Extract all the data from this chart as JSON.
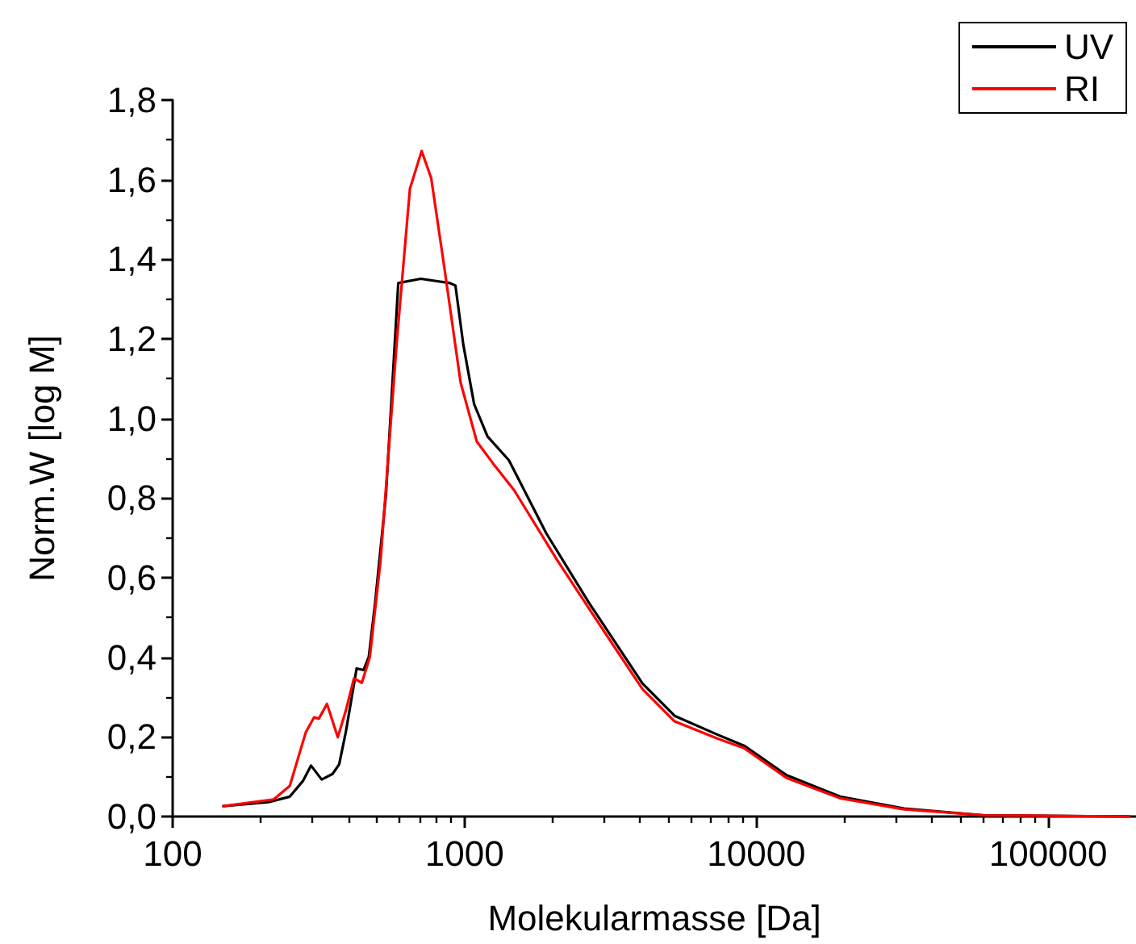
{
  "chart_data": {
    "type": "line",
    "xlabel": "Molekularmasse [Da]",
    "ylabel": "Norm.W [log M]",
    "log": "x",
    "xlim": [
      100,
      200000
    ],
    "xticks": [
      100,
      1000,
      10000,
      100000
    ],
    "ylim": [
      0,
      1.8
    ],
    "yticks": [
      {
        "value": 0,
        "label": "0,0"
      },
      {
        "value": 0.2,
        "label": "0,2"
      },
      {
        "value": 0.4,
        "label": "0,4"
      },
      {
        "value": 0.6,
        "label": "0,6"
      },
      {
        "value": 0.8,
        "label": "0,8"
      },
      {
        "value": 1.0,
        "label": "1,0"
      },
      {
        "value": 1.2,
        "label": "1,2"
      },
      {
        "value": 1.4,
        "label": "1,4"
      },
      {
        "value": 1.6,
        "label": "1,6"
      },
      {
        "value": 1.8,
        "label": "1,8"
      }
    ],
    "grid": false,
    "legend": "top right",
    "marker": "none",
    "line_style": "solid",
    "series": [
      {
        "name": "UV",
        "color": "#000000",
        "x": [
          149,
          213,
          252,
          280,
          298,
          324,
          353,
          372,
          392,
          427,
          451,
          470,
          494,
          538,
          593,
          708,
          893,
          931,
          991,
          1079,
          1199,
          1420,
          1905,
          2670,
          3162,
          4074,
          5248,
          7345,
          9078,
          12700,
          19370,
          32100,
          60500,
          190000
        ],
        "values": [
          0.026,
          0.036,
          0.05,
          0.09,
          0.128,
          0.093,
          0.107,
          0.131,
          0.212,
          0.372,
          0.368,
          0.401,
          0.537,
          0.807,
          1.34,
          1.351,
          1.34,
          1.334,
          1.185,
          1.036,
          0.955,
          0.895,
          0.712,
          0.537,
          0.456,
          0.334,
          0.253,
          0.206,
          0.178,
          0.104,
          0.05,
          0.02,
          0.003,
          0
        ]
      },
      {
        "name": "RI",
        "color": "#ff0000",
        "x": [
          149,
          222,
          252,
          286,
          305,
          317,
          338,
          368,
          392,
          418,
          445,
          474,
          516,
          585,
          650,
          713,
          769,
          855,
          970,
          1102,
          1250,
          1479,
          2075,
          2904,
          4074,
          5248,
          7345,
          9078,
          12700,
          19370,
          32100,
          60500,
          190000
        ],
        "values": [
          0.026,
          0.043,
          0.077,
          0.212,
          0.249,
          0.246,
          0.283,
          0.199,
          0.266,
          0.347,
          0.336,
          0.401,
          0.645,
          1.185,
          1.577,
          1.672,
          1.604,
          1.374,
          1.09,
          0.942,
          0.888,
          0.82,
          0.645,
          0.482,
          0.32,
          0.239,
          0.196,
          0.172,
          0.097,
          0.046,
          0.018,
          0.003,
          0
        ]
      }
    ]
  }
}
